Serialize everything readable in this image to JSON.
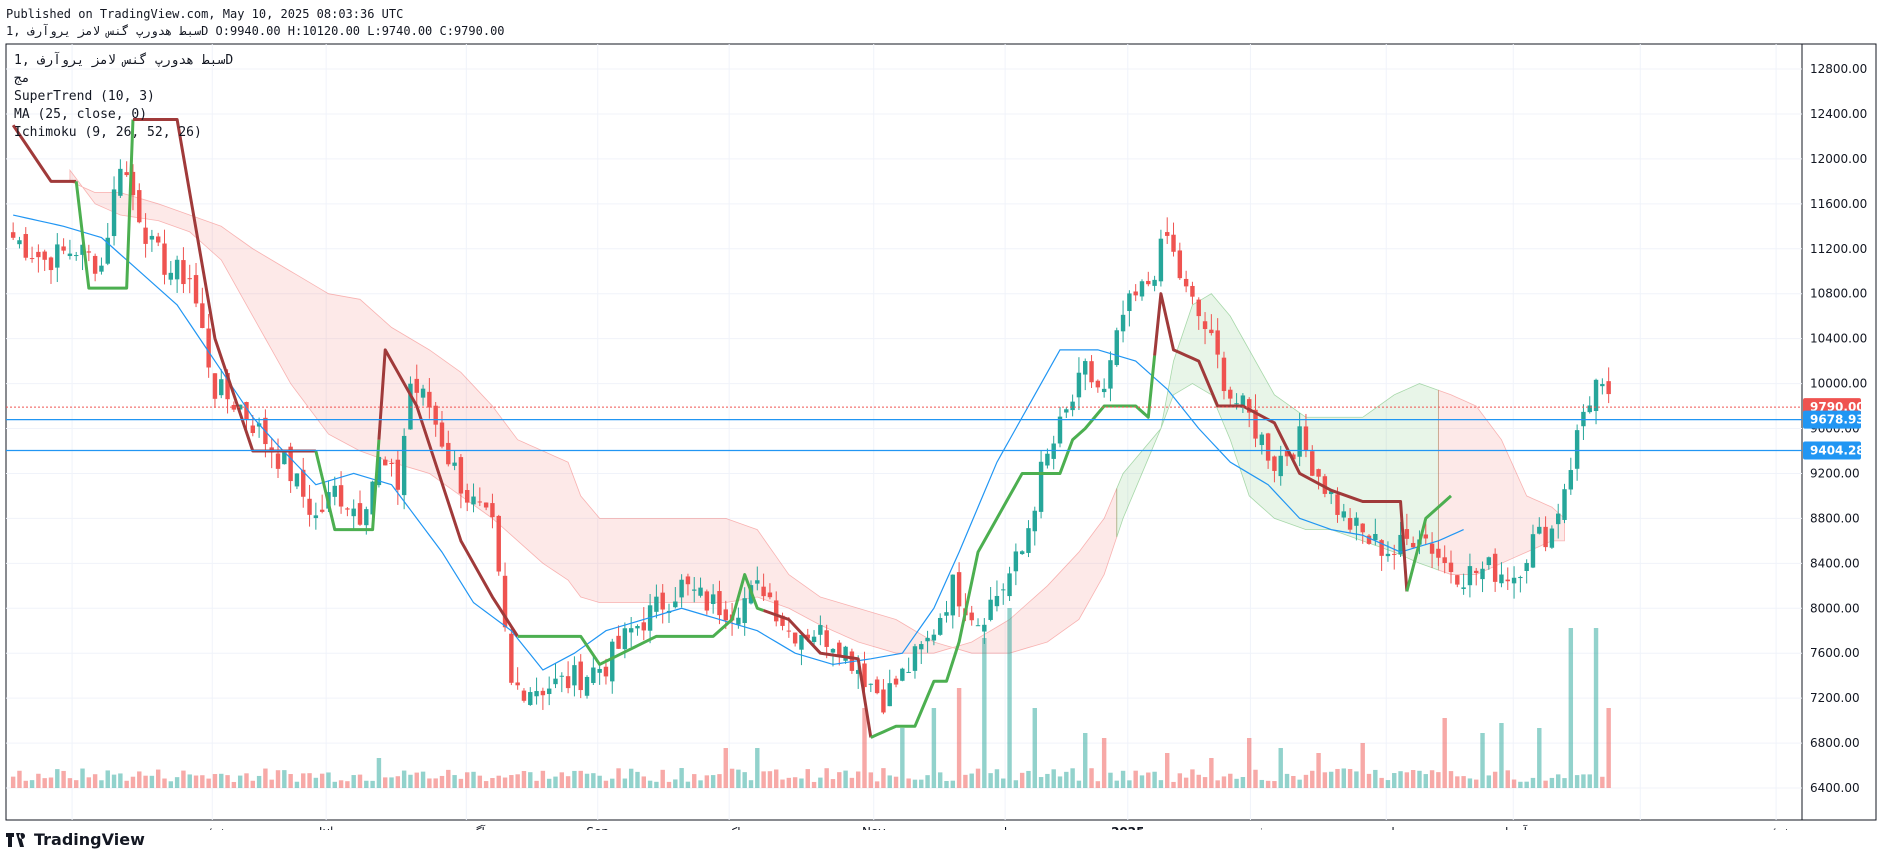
{
  "header": {
    "published": "Published on TradingView.com, May 10, 2025 08:03:36 UTC",
    "symbol_line": "سبط هدورپ گنس لامز یروآرف ,1D O:9940.00 H:10120.00 L:9740.00 C:9790.00"
  },
  "legend": {
    "symbol": "سبط هدورپ گنس لامز یروآرف ,1D",
    "sub": "مج",
    "supertrend": "SuperTrend (10, 3)",
    "ma": "MA (25, close, 0)",
    "ichimoku": "Ichimoku (9, 26, 52, 26)"
  },
  "footer": {
    "brand": "TradingView"
  },
  "colors": {
    "up": "#26a69a",
    "down": "#ef5350",
    "st_up": "#4caf50",
    "st_down": "#a03a3a",
    "ma": "#2196f3",
    "price_tag": "#ef5350",
    "hline_tag": "#2196f3"
  },
  "chart_data": {
    "type": "candlestick",
    "y_axis": {
      "min": 6400,
      "max": 12800,
      "ticks": [
        "12800.00",
        "12400.00",
        "12000.00",
        "11600.00",
        "11200.00",
        "10800.00",
        "10400.00",
        "10000.00",
        "9600.00",
        "9200.00",
        "8800.00",
        "8400.00",
        "8000.00",
        "7600.00",
        "7200.00",
        "6800.00",
        "6400.00"
      ]
    },
    "x_labels": [
      "می",
      "ژوئن",
      "Jul",
      "آگوست",
      "Sep",
      "اکتبر",
      "Nov",
      "دسامبر",
      "2025",
      "فوریه",
      "مارس",
      "آوریل",
      "می",
      "ژوئن"
    ],
    "price_tags": [
      {
        "label": "9790.00",
        "value": 9790,
        "kind": "last"
      },
      {
        "label": "9678.93",
        "value": 9678.93,
        "kind": "hline"
      },
      {
        "label": "9404.28",
        "value": 9404.28,
        "kind": "hline"
      }
    ],
    "anchors": [
      [
        0,
        11300
      ],
      [
        5,
        11100
      ],
      [
        10,
        11200
      ],
      [
        14,
        11050
      ],
      [
        17,
        12000
      ],
      [
        22,
        11200
      ],
      [
        25,
        11000
      ],
      [
        28,
        10950
      ],
      [
        32,
        9950
      ],
      [
        36,
        9800
      ],
      [
        40,
        9500
      ],
      [
        44,
        9200
      ],
      [
        48,
        8800
      ],
      [
        51,
        9050
      ],
      [
        55,
        8850
      ],
      [
        58,
        9300
      ],
      [
        61,
        9100
      ],
      [
        63,
        10000
      ],
      [
        66,
        9800
      ],
      [
        69,
        9350
      ],
      [
        72,
        9000
      ],
      [
        76,
        8700
      ],
      [
        79,
        7300
      ],
      [
        84,
        7300
      ],
      [
        88,
        7350
      ],
      [
        94,
        7500
      ],
      [
        98,
        7800
      ],
      [
        102,
        8000
      ],
      [
        106,
        8200
      ],
      [
        110,
        8050
      ],
      [
        114,
        8000
      ],
      [
        119,
        8200
      ],
      [
        123,
        7800
      ],
      [
        127,
        7800
      ],
      [
        131,
        7700
      ],
      [
        135,
        7400
      ],
      [
        138,
        7200
      ],
      [
        141,
        7400
      ],
      [
        145,
        7700
      ],
      [
        149,
        8200
      ],
      [
        153,
        7900
      ],
      [
        157,
        8200
      ],
      [
        160,
        8500
      ],
      [
        163,
        9200
      ],
      [
        166,
        9600
      ],
      [
        170,
        10100
      ],
      [
        173,
        9900
      ],
      [
        176,
        10600
      ],
      [
        180,
        10900
      ],
      [
        183,
        11300
      ],
      [
        186,
        10800
      ],
      [
        189,
        10500
      ],
      [
        193,
        9900
      ],
      [
        196,
        9700
      ],
      [
        200,
        9300
      ],
      [
        204,
        9500
      ],
      [
        207,
        9200
      ],
      [
        211,
        8800
      ],
      [
        215,
        8600
      ],
      [
        219,
        8500
      ],
      [
        223,
        8700
      ],
      [
        227,
        8400
      ],
      [
        230,
        8300
      ],
      [
        234,
        8350
      ],
      [
        238,
        8300
      ],
      [
        241,
        8600
      ],
      [
        244,
        8700
      ],
      [
        247,
        9300
      ],
      [
        249,
        9750
      ],
      [
        251,
        10000
      ],
      [
        253,
        9790
      ]
    ],
    "total_bars": 254,
    "volume_spikes": [
      [
        58,
        30
      ],
      [
        113,
        40
      ],
      [
        118,
        40
      ],
      [
        135,
        80
      ],
      [
        141,
        60
      ],
      [
        146,
        80
      ],
      [
        150,
        100
      ],
      [
        154,
        150
      ],
      [
        158,
        180
      ],
      [
        162,
        80
      ],
      [
        170,
        55
      ],
      [
        173,
        50
      ],
      [
        183,
        35
      ],
      [
        190,
        30
      ],
      [
        196,
        50
      ],
      [
        201,
        40
      ],
      [
        207,
        35
      ],
      [
        214,
        45
      ],
      [
        227,
        70
      ],
      [
        233,
        55
      ],
      [
        236,
        65
      ],
      [
        242,
        60
      ],
      [
        247,
        160
      ],
      [
        251,
        160
      ],
      [
        253,
        80
      ]
    ],
    "supertrend": [
      [
        0,
        12300
      ],
      [
        6,
        11800
      ],
      [
        10,
        11800
      ],
      [
        12,
        10850
      ],
      [
        18,
        10850
      ],
      [
        19,
        12350
      ],
      [
        26,
        12350
      ],
      [
        32,
        10400
      ],
      [
        38,
        9400
      ],
      [
        48,
        9400
      ],
      [
        51,
        8700
      ],
      [
        57,
        8700
      ],
      [
        59,
        10300
      ],
      [
        64,
        9800
      ],
      [
        71,
        8600
      ],
      [
        76,
        8100
      ],
      [
        80,
        7750
      ],
      [
        90,
        7750
      ],
      [
        93,
        7500
      ],
      [
        102,
        7750
      ],
      [
        111,
        7750
      ],
      [
        114,
        7900
      ],
      [
        116,
        8300
      ],
      [
        118,
        8000
      ],
      [
        123,
        7900
      ],
      [
        128,
        7600
      ],
      [
        134,
        7550
      ],
      [
        136,
        6850
      ],
      [
        140,
        6950
      ],
      [
        143,
        6950
      ],
      [
        146,
        7350
      ],
      [
        148,
        7350
      ],
      [
        150,
        7700
      ],
      [
        153,
        8500
      ],
      [
        157,
        8900
      ],
      [
        160,
        9200
      ],
      [
        166,
        9200
      ],
      [
        168,
        9500
      ],
      [
        170,
        9600
      ],
      [
        173,
        9800
      ],
      [
        178,
        9800
      ],
      [
        180,
        9700
      ],
      [
        182,
        10800
      ],
      [
        184,
        10300
      ],
      [
        188,
        10200
      ],
      [
        191,
        9800
      ],
      [
        195,
        9800
      ],
      [
        200,
        9650
      ],
      [
        204,
        9200
      ],
      [
        209,
        9050
      ],
      [
        214,
        8950
      ],
      [
        220,
        8950
      ],
      [
        221,
        8150
      ],
      [
        224,
        8800
      ],
      [
        228,
        9000
      ]
    ],
    "supertrend_up_segments": [
      [
        10,
        18
      ],
      [
        48,
        57
      ],
      [
        80,
        118
      ],
      [
        136,
        180
      ],
      [
        221,
        228
      ]
    ],
    "ma": [
      [
        0,
        11500
      ],
      [
        8,
        11400
      ],
      [
        14,
        11300
      ],
      [
        20,
        11000
      ],
      [
        26,
        10700
      ],
      [
        32,
        10200
      ],
      [
        38,
        9700
      ],
      [
        42,
        9450
      ],
      [
        48,
        9100
      ],
      [
        54,
        9200
      ],
      [
        60,
        9100
      ],
      [
        64,
        8800
      ],
      [
        68,
        8500
      ],
      [
        73,
        8050
      ],
      [
        79,
        7800
      ],
      [
        84,
        7450
      ],
      [
        89,
        7600
      ],
      [
        94,
        7800
      ],
      [
        100,
        7900
      ],
      [
        106,
        8000
      ],
      [
        112,
        7900
      ],
      [
        118,
        7800
      ],
      [
        124,
        7600
      ],
      [
        130,
        7500
      ],
      [
        136,
        7550
      ],
      [
        141,
        7600
      ],
      [
        146,
        8000
      ],
      [
        150,
        8500
      ],
      [
        156,
        9300
      ],
      [
        162,
        9900
      ],
      [
        166,
        10300
      ],
      [
        172,
        10300
      ],
      [
        178,
        10200
      ],
      [
        183,
        9950
      ],
      [
        188,
        9600
      ],
      [
        193,
        9300
      ],
      [
        199,
        9100
      ],
      [
        204,
        8800
      ],
      [
        209,
        8700
      ],
      [
        214,
        8650
      ],
      [
        220,
        8500
      ],
      [
        226,
        8600
      ],
      [
        230,
        8700
      ]
    ],
    "cloud_upper": [
      [
        9,
        11800
      ],
      [
        13,
        11700
      ],
      [
        17,
        11700
      ],
      [
        23,
        11600
      ],
      [
        28,
        11500
      ],
      [
        33,
        11400
      ],
      [
        38,
        11200
      ],
      [
        44,
        11000
      ],
      [
        50,
        10800
      ],
      [
        55,
        10750
      ],
      [
        60,
        10500
      ],
      [
        66,
        10300
      ],
      [
        71,
        10100
      ],
      [
        76,
        9800
      ],
      [
        80,
        9500
      ],
      [
        84,
        9400
      ],
      [
        88,
        9300
      ],
      [
        90,
        9000
      ],
      [
        93,
        8800
      ],
      [
        98,
        8800
      ],
      [
        105,
        8800
      ],
      [
        113,
        8800
      ],
      [
        118,
        8700
      ],
      [
        123,
        8300
      ],
      [
        128,
        8100
      ],
      [
        134,
        8000
      ],
      [
        140,
        7900
      ],
      [
        146,
        7700
      ],
      [
        152,
        7600
      ],
      [
        158,
        7600
      ],
      [
        164,
        7700
      ],
      [
        169,
        7900
      ],
      [
        173,
        8300
      ],
      [
        176,
        8800
      ],
      [
        179,
        9200
      ],
      [
        182,
        9600
      ],
      [
        184,
        10200
      ],
      [
        187,
        10700
      ],
      [
        190,
        10800
      ],
      [
        193,
        10600
      ],
      [
        196,
        10300
      ],
      [
        200,
        9900
      ],
      [
        205,
        9700
      ],
      [
        209,
        9700
      ],
      [
        214,
        9700
      ],
      [
        219,
        9900
      ],
      [
        223,
        10000
      ],
      [
        228,
        9900
      ],
      [
        232,
        9800
      ],
      [
        236,
        9500
      ],
      [
        240,
        9000
      ],
      [
        244,
        8900
      ],
      [
        246,
        8800
      ]
    ],
    "cloud_lower": [
      [
        9,
        11900
      ],
      [
        13,
        11600
      ],
      [
        17,
        11500
      ],
      [
        23,
        11450
      ],
      [
        28,
        11350
      ],
      [
        33,
        11100
      ],
      [
        38,
        10600
      ],
      [
        44,
        10000
      ],
      [
        50,
        9550
      ],
      [
        55,
        9400
      ],
      [
        60,
        9300
      ],
      [
        66,
        9200
      ],
      [
        71,
        9000
      ],
      [
        76,
        8800
      ],
      [
        80,
        8600
      ],
      [
        84,
        8400
      ],
      [
        88,
        8250
      ],
      [
        90,
        8100
      ],
      [
        93,
        8050
      ],
      [
        98,
        8050
      ],
      [
        105,
        8050
      ],
      [
        113,
        8050
      ],
      [
        118,
        8100
      ],
      [
        123,
        8000
      ],
      [
        128,
        7850
      ],
      [
        134,
        7700
      ],
      [
        140,
        7600
      ],
      [
        146,
        7600
      ],
      [
        152,
        7700
      ],
      [
        158,
        7900
      ],
      [
        164,
        8200
      ],
      [
        169,
        8500
      ],
      [
        173,
        8800
      ],
      [
        176,
        9200
      ],
      [
        179,
        9400
      ],
      [
        182,
        9600
      ],
      [
        184,
        9900
      ],
      [
        187,
        10000
      ],
      [
        190,
        9900
      ],
      [
        193,
        9500
      ],
      [
        196,
        9000
      ],
      [
        200,
        8800
      ],
      [
        205,
        8700
      ],
      [
        209,
        8700
      ],
      [
        214,
        8600
      ],
      [
        219,
        8500
      ],
      [
        223,
        8400
      ],
      [
        228,
        8300
      ],
      [
        232,
        8300
      ],
      [
        236,
        8400
      ],
      [
        240,
        8500
      ],
      [
        244,
        8600
      ],
      [
        246,
        8600
      ]
    ],
    "cloud_bull_segments": [
      [
        175,
        226
      ]
    ]
  }
}
